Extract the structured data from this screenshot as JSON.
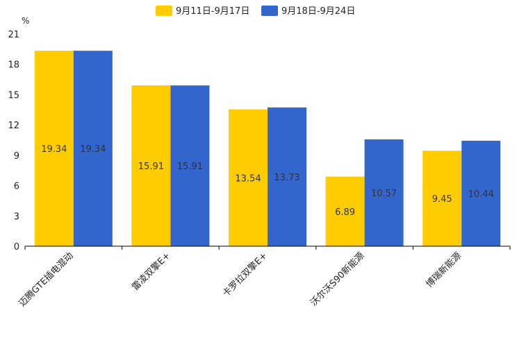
{
  "chart_data": {
    "type": "bar",
    "unit": "%",
    "categories": [
      "迈腾GTE插电混动",
      "雷凌双擎E+",
      "卡罗拉双擎E+",
      "沃尔沃S90新能源",
      "博瑞新能源"
    ],
    "series": [
      {
        "name": "9月11日-9月17日",
        "color": "#FFCC00",
        "values": [
          19.34,
          15.91,
          13.54,
          6.89,
          9.45
        ]
      },
      {
        "name": "9月18日-9月24日",
        "color": "#3366CC",
        "values": [
          19.34,
          15.91,
          13.73,
          10.57,
          10.44
        ]
      }
    ],
    "y_ticks": [
      0,
      3,
      6,
      9,
      12,
      15,
      18,
      21
    ],
    "ylim": [
      0,
      21
    ],
    "legend_position": "top-center",
    "grid": false
  }
}
